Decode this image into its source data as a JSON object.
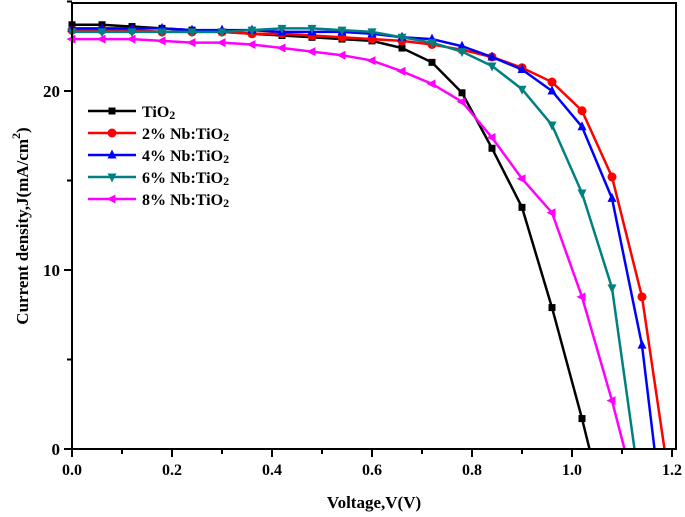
{
  "chart_data": {
    "type": "line",
    "title": "",
    "xlabel": "Voltage,V(V)",
    "ylabel": "Current density,J(mA/cm",
    "ylabel_sup": "2",
    "ylabel_end": ")",
    "xlim": [
      0,
      1.2
    ],
    "ylim": [
      0,
      25
    ],
    "xticks": [
      "0.0",
      "0.2",
      "0.4",
      "0.6",
      "0.8",
      "1.0",
      "1.2"
    ],
    "yticks": [
      "0",
      "10",
      "20"
    ],
    "grid": false,
    "legend": "upper-left",
    "series": [
      {
        "name": "TiO2",
        "label_main": "TiO",
        "label_sub": "2",
        "color": "#000000",
        "marker": "square",
        "x": [
          0,
          0.06,
          0.12,
          0.18,
          0.24,
          0.3,
          0.36,
          0.42,
          0.48,
          0.54,
          0.6,
          0.66,
          0.72,
          0.78,
          0.84,
          0.9,
          0.96,
          1.02,
          1.035
        ],
        "y": [
          23.7,
          23.7,
          23.6,
          23.5,
          23.4,
          23.3,
          23.2,
          23.1,
          23.0,
          22.9,
          22.8,
          22.4,
          21.6,
          19.9,
          16.8,
          13.5,
          7.9,
          1.7,
          0
        ]
      },
      {
        "name": "2% Nb:TiO2",
        "label_main": "2% Nb:TiO",
        "label_sub": "2",
        "color": "#ff0000",
        "marker": "circle",
        "x": [
          0,
          0.06,
          0.12,
          0.18,
          0.24,
          0.3,
          0.36,
          0.42,
          0.48,
          0.54,
          0.6,
          0.66,
          0.72,
          0.78,
          0.84,
          0.9,
          0.96,
          1.02,
          1.08,
          1.14,
          1.185
        ],
        "y": [
          23.4,
          23.4,
          23.4,
          23.3,
          23.3,
          23.3,
          23.2,
          23.2,
          23.1,
          23.0,
          22.9,
          22.8,
          22.6,
          22.3,
          21.9,
          21.3,
          20.5,
          18.9,
          15.2,
          8.5,
          0
        ]
      },
      {
        "name": "4% Nb:TiO2",
        "label_main": "4% Nb:TiO",
        "label_sub": "2",
        "color": "#0000ff",
        "marker": "triangle-up",
        "x": [
          0,
          0.06,
          0.12,
          0.18,
          0.24,
          0.3,
          0.36,
          0.42,
          0.48,
          0.54,
          0.6,
          0.66,
          0.72,
          0.78,
          0.84,
          0.9,
          0.96,
          1.02,
          1.08,
          1.14,
          1.165
        ],
        "y": [
          23.5,
          23.5,
          23.5,
          23.5,
          23.4,
          23.4,
          23.4,
          23.3,
          23.3,
          23.3,
          23.2,
          23.0,
          22.9,
          22.5,
          21.9,
          21.2,
          20.0,
          18.0,
          14.0,
          5.8,
          0
        ]
      },
      {
        "name": "6% Nb:TiO2",
        "label_main": "6% Nb:TiO",
        "label_sub": "2",
        "color": "#008080",
        "marker": "triangle-down",
        "x": [
          0,
          0.06,
          0.12,
          0.18,
          0.24,
          0.3,
          0.36,
          0.42,
          0.48,
          0.54,
          0.6,
          0.66,
          0.72,
          0.78,
          0.84,
          0.9,
          0.96,
          1.02,
          1.08,
          1.125
        ],
        "y": [
          23.3,
          23.3,
          23.3,
          23.3,
          23.3,
          23.3,
          23.4,
          23.5,
          23.5,
          23.4,
          23.3,
          23.0,
          22.7,
          22.2,
          21.4,
          20.1,
          18.1,
          14.3,
          9.0,
          0
        ]
      },
      {
        "name": "8% Nb:TiO2",
        "label_main": "8% Nb:TiO",
        "label_sub": "2",
        "color": "#ff00ff",
        "marker": "triangle-left",
        "x": [
          0,
          0.06,
          0.12,
          0.18,
          0.24,
          0.3,
          0.36,
          0.42,
          0.48,
          0.54,
          0.6,
          0.66,
          0.72,
          0.78,
          0.84,
          0.9,
          0.96,
          1.02,
          1.08,
          1.105
        ],
        "y": [
          22.9,
          22.9,
          22.9,
          22.8,
          22.7,
          22.7,
          22.6,
          22.4,
          22.2,
          22.0,
          21.7,
          21.1,
          20.4,
          19.4,
          17.4,
          15.1,
          13.2,
          8.5,
          2.7,
          0
        ]
      }
    ]
  }
}
